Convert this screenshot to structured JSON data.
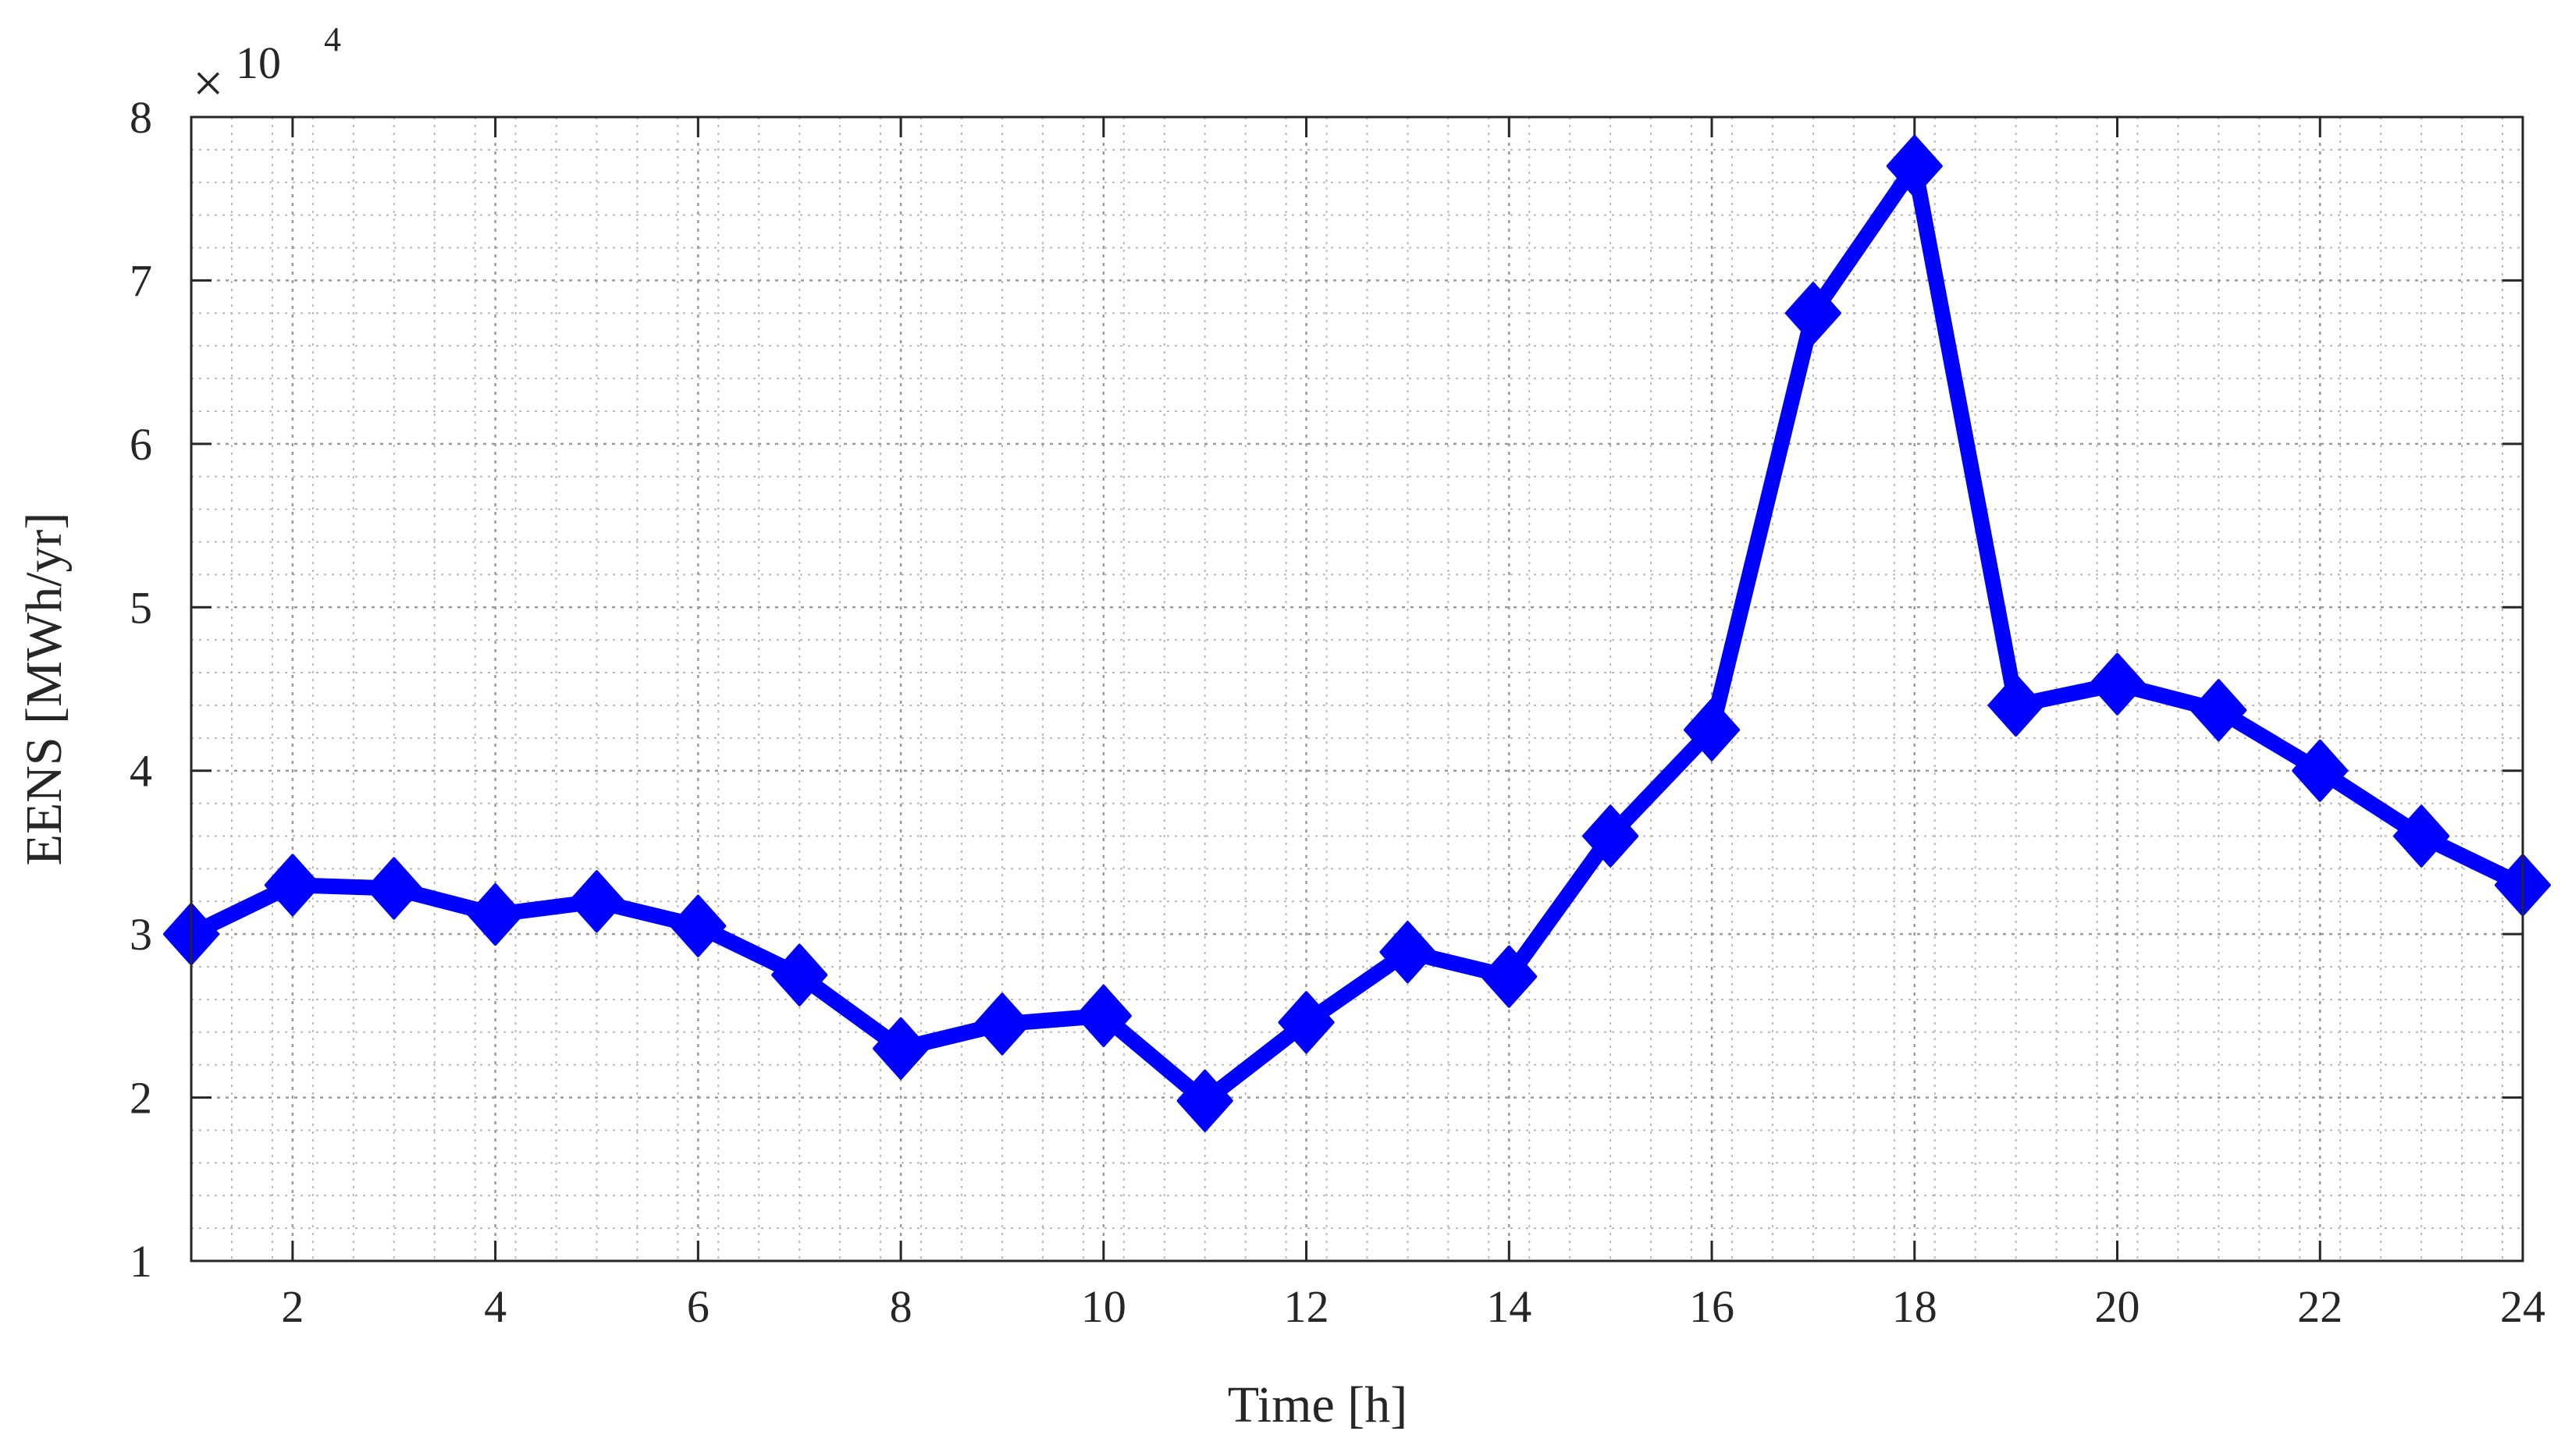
{
  "chart_data": {
    "type": "line",
    "xlabel": "Time [h]",
    "ylabel": "EENS [MWh/yr]",
    "y_multiplier": {
      "symbol": "×",
      "base": "10",
      "exponent": "4"
    },
    "xlim": [
      1,
      24
    ],
    "ylim": [
      1,
      8
    ],
    "y_display_scale": 10000,
    "xticks": [
      2,
      4,
      6,
      8,
      10,
      12,
      14,
      16,
      18,
      20,
      22,
      24
    ],
    "yticks": [
      1,
      2,
      3,
      4,
      5,
      6,
      7,
      8
    ],
    "grid": true,
    "minor_grid": true,
    "legend": "none",
    "series": [
      {
        "color": "#0000ff",
        "marker": "diamond",
        "x": [
          1,
          2,
          3,
          4,
          5,
          6,
          7,
          8,
          9,
          10,
          11,
          12,
          13,
          14,
          15,
          16,
          17,
          18,
          19,
          20,
          21,
          22,
          23,
          24
        ],
        "values": [
          30000,
          33000,
          32800,
          31200,
          32000,
          30500,
          27500,
          23000,
          24500,
          25000,
          19800,
          24600,
          28900,
          27400,
          36000,
          42500,
          68000,
          77000,
          44000,
          45300,
          43700,
          40000,
          36000,
          33000
        ]
      }
    ]
  }
}
